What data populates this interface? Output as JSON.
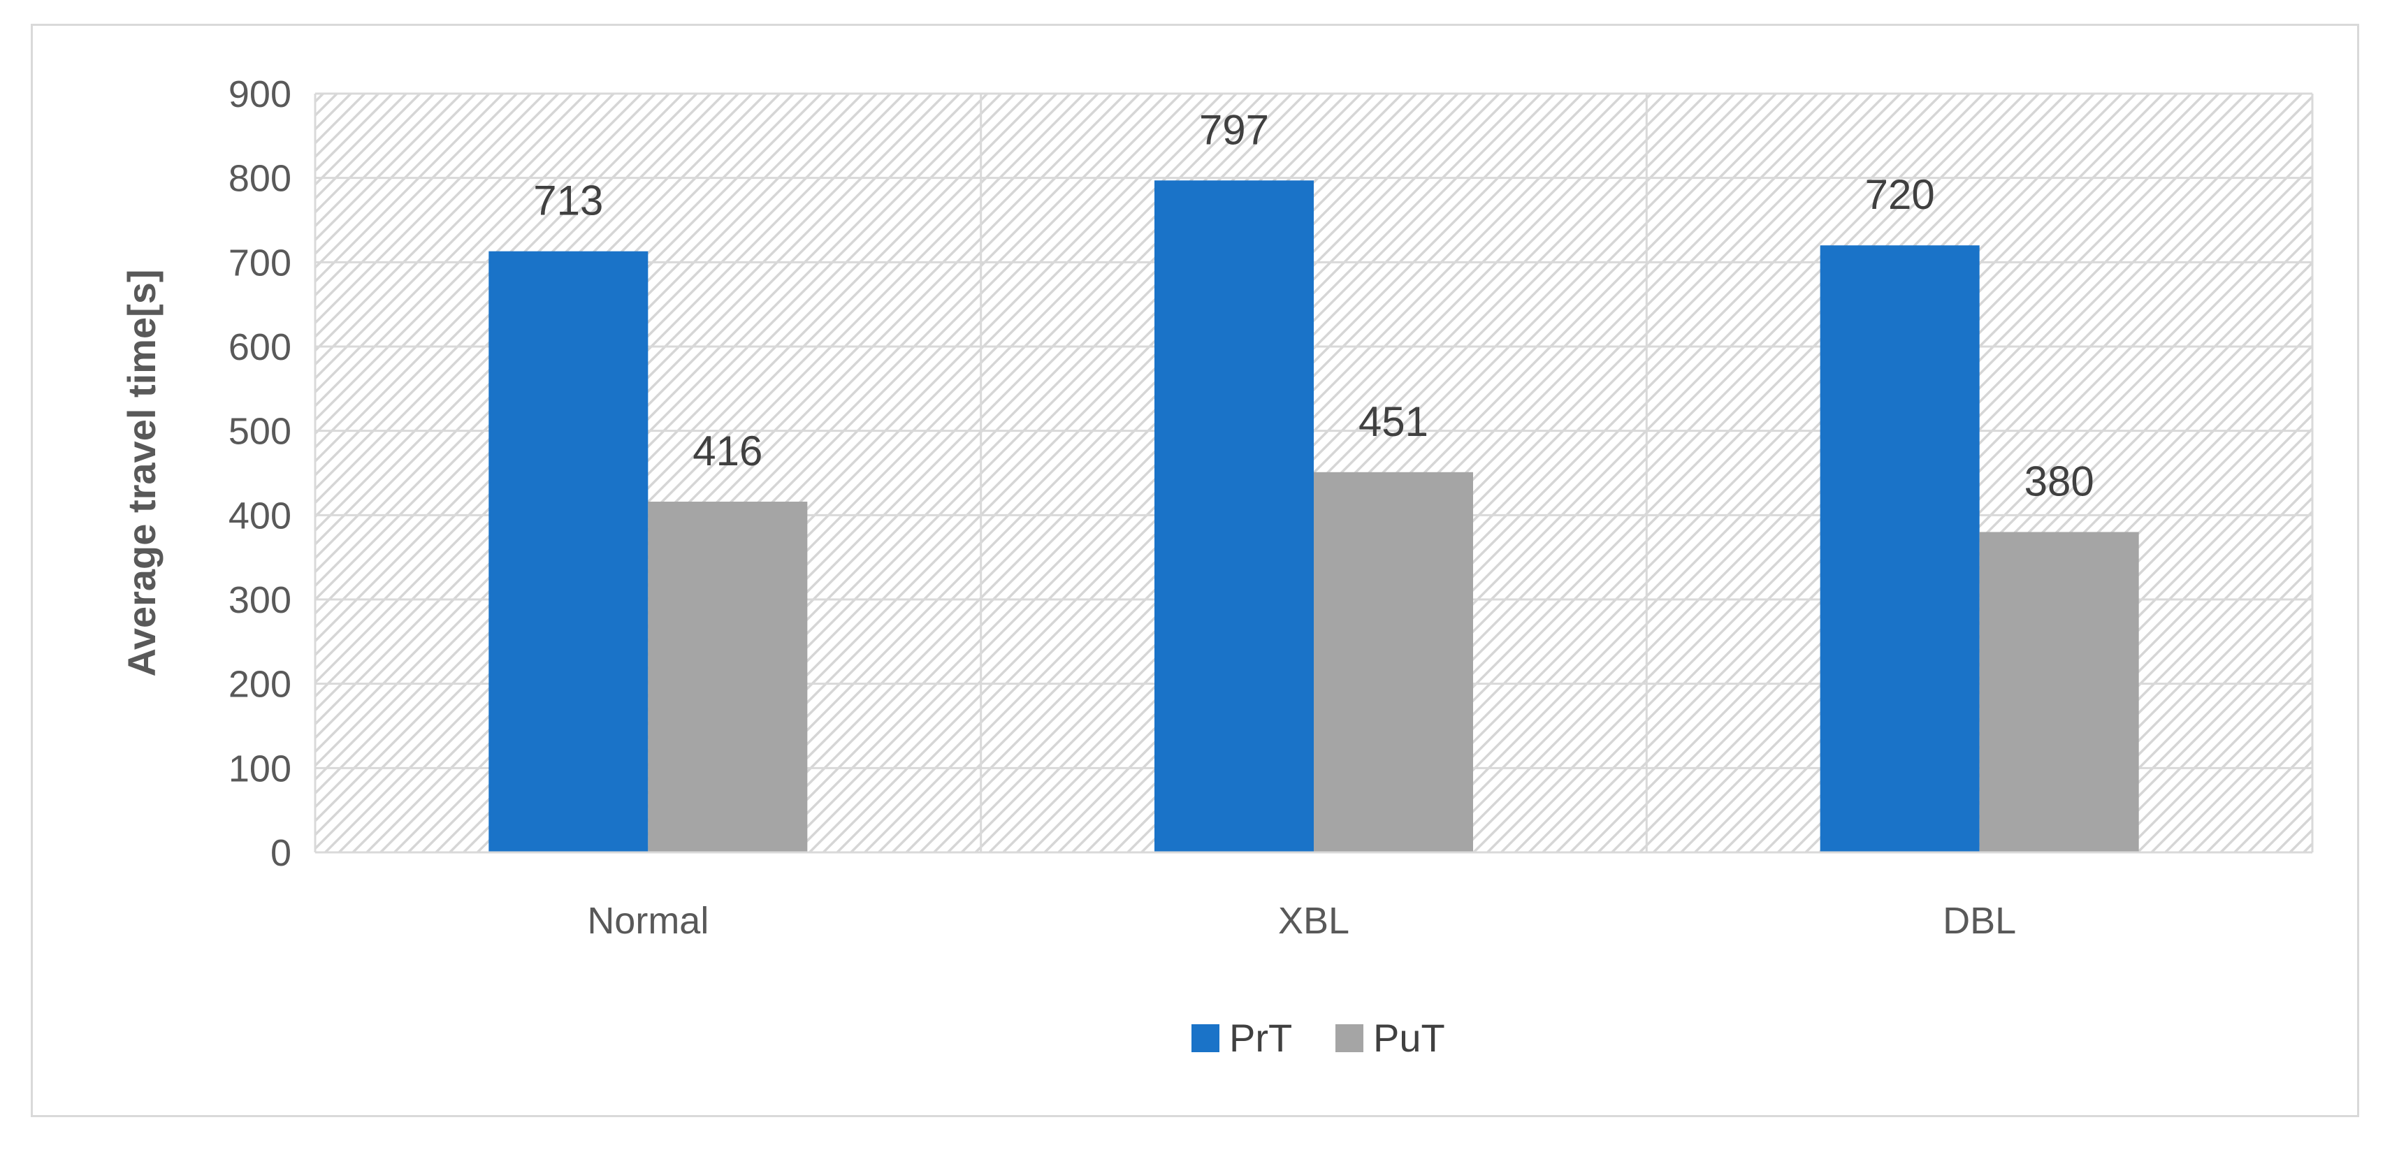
{
  "chart_data": {
    "type": "bar",
    "title": "",
    "xlabel": "",
    "ylabel": "Average travel time[s]",
    "categories": [
      "Normal",
      "XBL",
      "DBL"
    ],
    "series": [
      {
        "name": "PrT",
        "values": [
          713,
          797,
          720
        ],
        "color": "#1a73c8"
      },
      {
        "name": "PuT",
        "values": [
          416,
          451,
          380
        ],
        "color": "#a5a5a5"
      }
    ],
    "ylim": [
      0,
      900
    ],
    "yticks": [
      0,
      100,
      200,
      300,
      400,
      500,
      600,
      700,
      800,
      900
    ],
    "grid": true,
    "legend": "bottom",
    "data_labels": true,
    "plot_background": "hatched-grey"
  }
}
